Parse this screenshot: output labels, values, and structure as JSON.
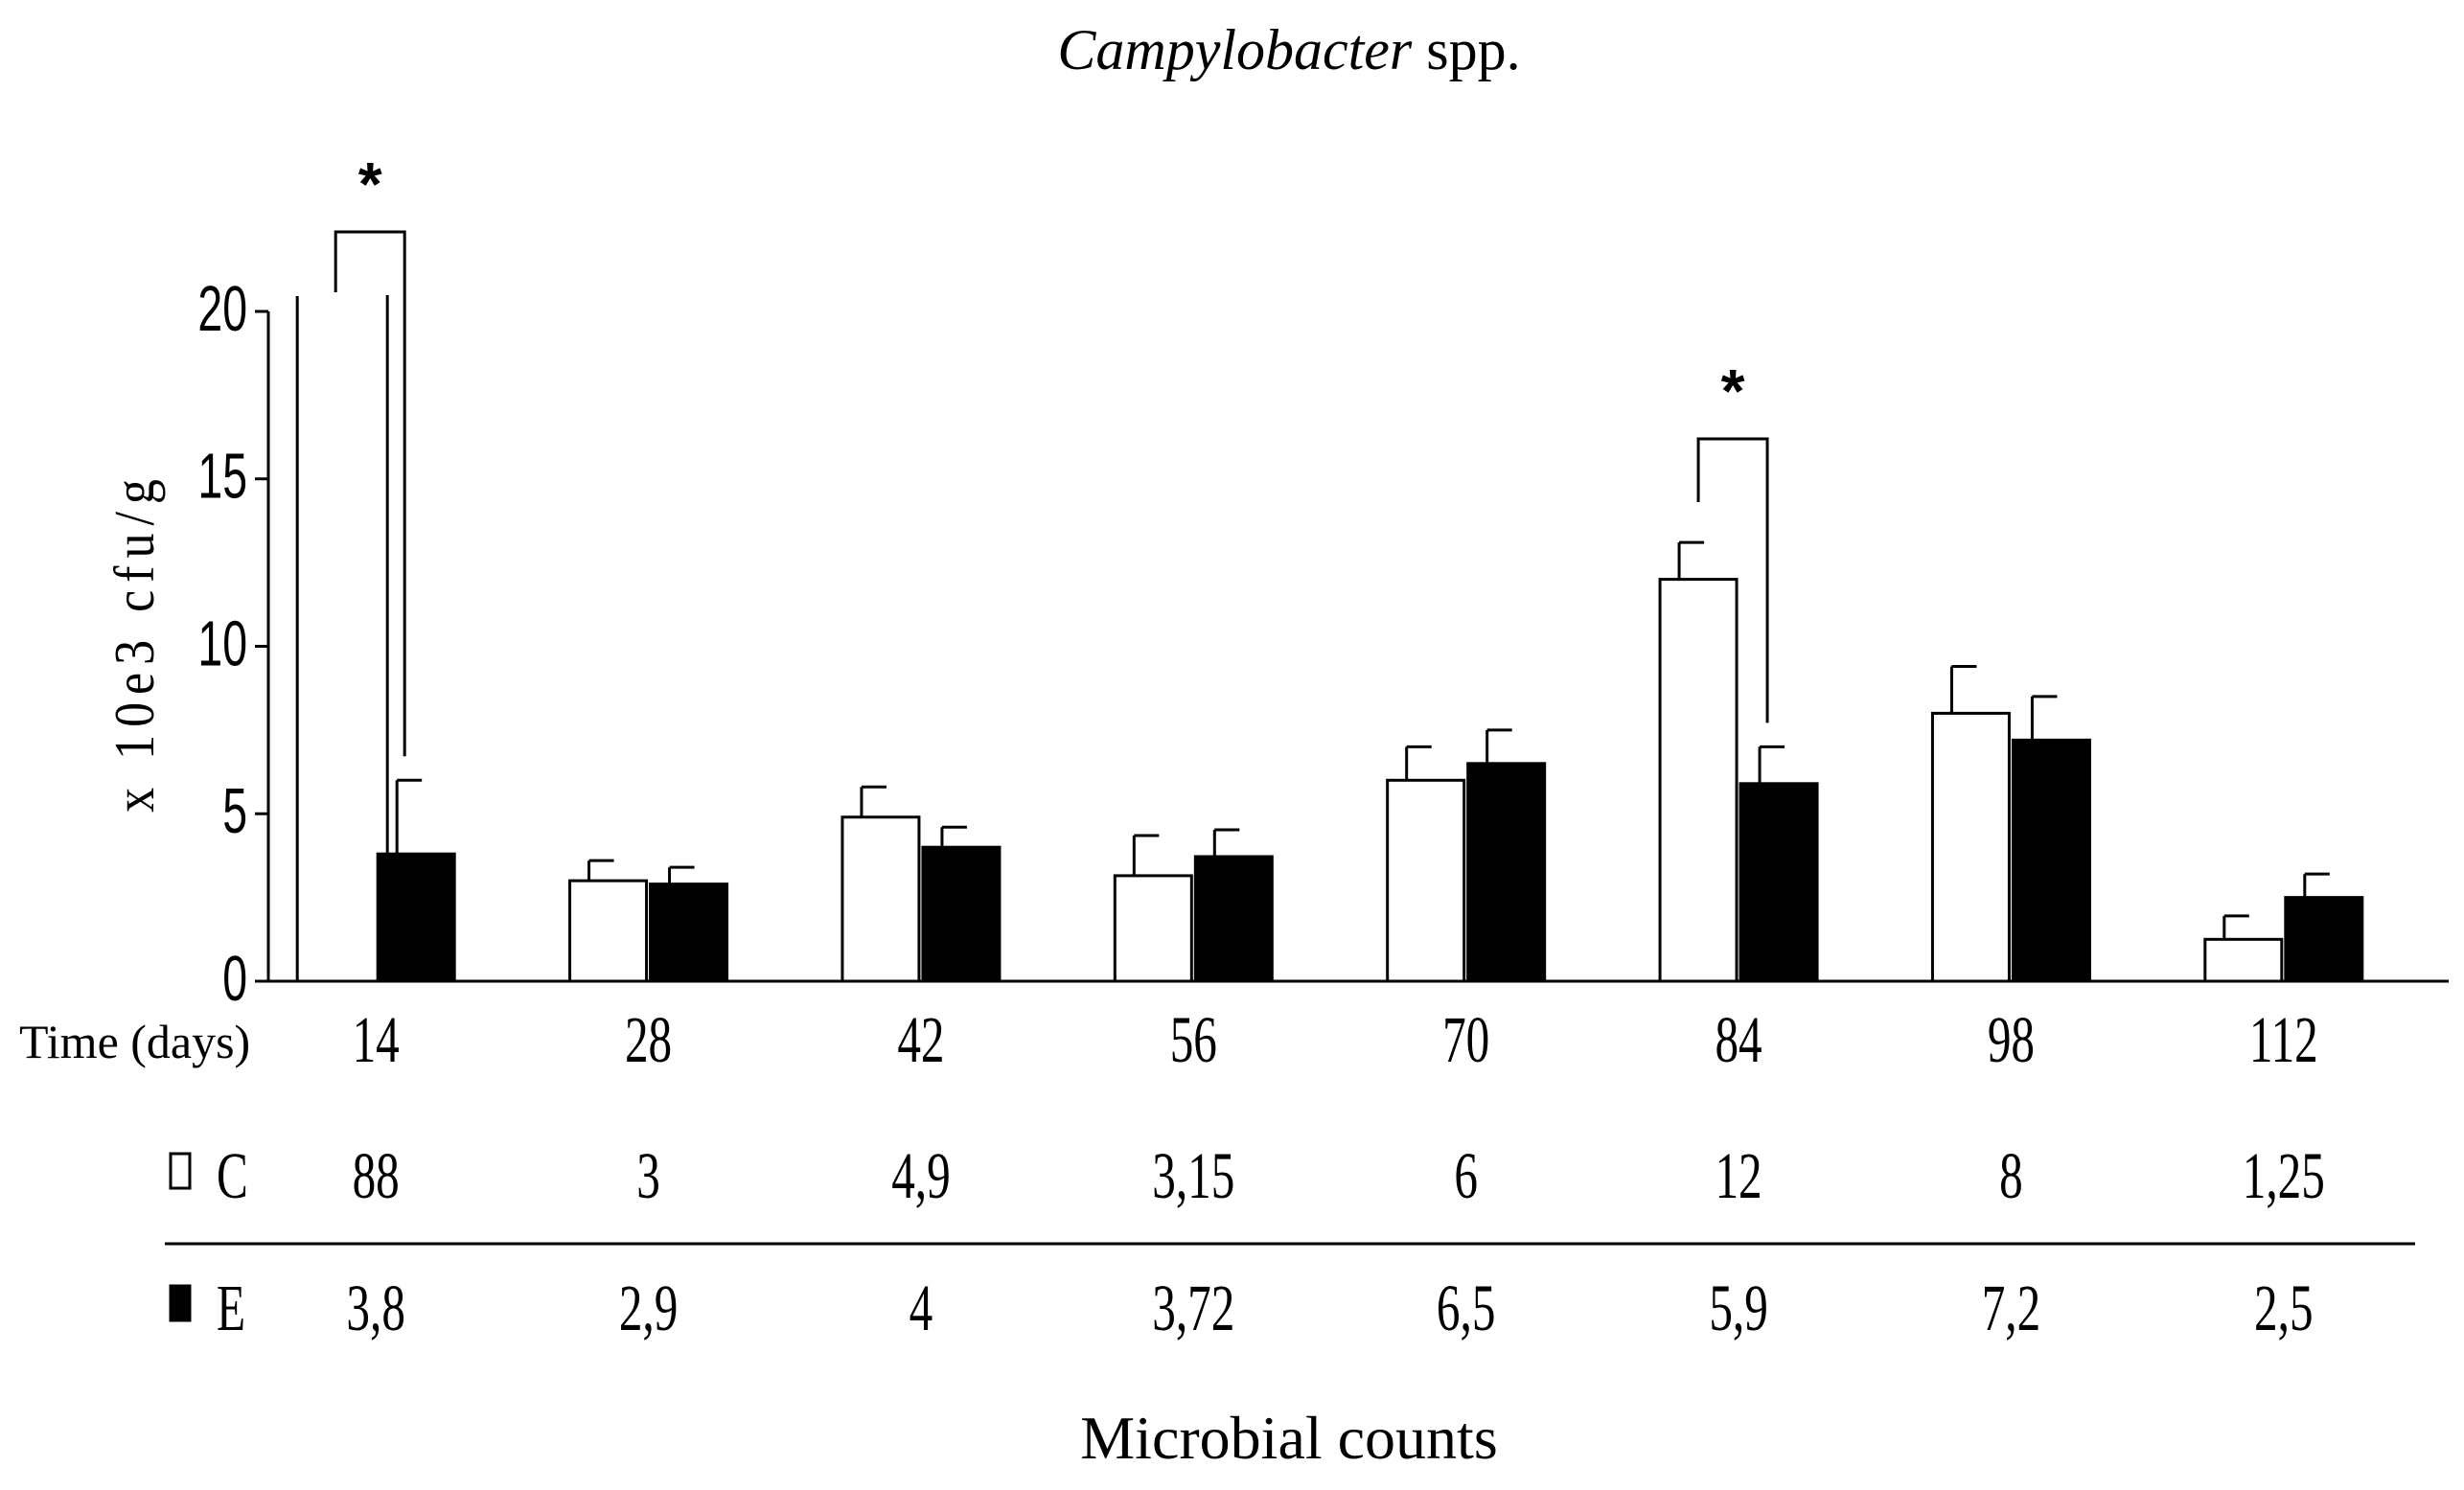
{
  "chart_data": {
    "type": "bar",
    "title_italic": "Campylobacter",
    "title_rest": " spp.",
    "ylabel": "x 10e3 cfu/g",
    "xlabel": "Microbial counts",
    "ylim": [
      0,
      20
    ],
    "y_ticks": [
      "0",
      "5",
      "10",
      "15",
      "20"
    ],
    "row_header": "Time (days)",
    "categories": [
      "14",
      "28",
      "42",
      "56",
      "70",
      "84",
      "98",
      "112"
    ],
    "series": [
      {
        "name": "C",
        "fill": "#ffffff",
        "values": [
          88,
          3,
          4.9,
          3.15,
          6,
          12,
          8,
          1.25
        ],
        "value_labels": [
          "88",
          "3",
          "4,9",
          "3,15",
          "6",
          "12",
          "8",
          "1,25"
        ],
        "errors": [
          0,
          0.6,
          0.9,
          1.2,
          1.0,
          1.1,
          1.4,
          0.7
        ]
      },
      {
        "name": "E",
        "fill": "#000000",
        "values": [
          3.8,
          2.9,
          4,
          3.72,
          6.5,
          5.9,
          7.2,
          2.5
        ],
        "value_labels": [
          "3,8",
          "2,9",
          "4",
          "3,72",
          "6,5",
          "5,9",
          "7,2",
          "2,5"
        ],
        "errors": [
          2.2,
          0.5,
          0.6,
          0.8,
          1.0,
          1.1,
          1.3,
          0.7
        ]
      }
    ],
    "annotations": [
      {
        "category": "14",
        "label": "*"
      },
      {
        "category": "84",
        "label": "*"
      }
    ]
  }
}
